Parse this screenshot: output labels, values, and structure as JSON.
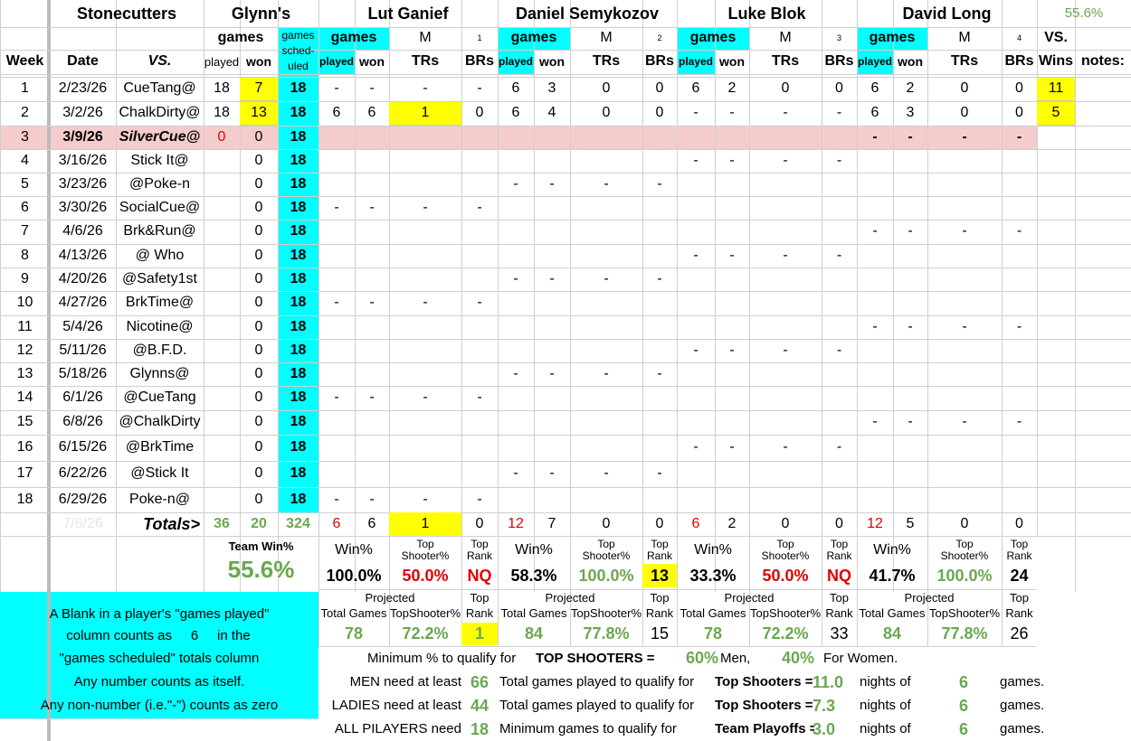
{
  "header": {
    "team": "Stonecutters",
    "venue": "Glynn's",
    "players": [
      "Lut Ganief",
      "Daniel Semykozov",
      "Luke Blok",
      "David Long"
    ],
    "team_pct": "55.6%",
    "games": "games",
    "sched": [
      "games",
      "sched-",
      "uled"
    ],
    "played": "played",
    "won": "won",
    "week": "Week",
    "date": "Date",
    "vs": "VS.",
    "m": "M",
    "trs": "TRs",
    "brs": "BRs",
    "player_nums": [
      1,
      2,
      3,
      4
    ],
    "vs_wins": [
      "VS.",
      "Wins"
    ],
    "notes": "notes:"
  },
  "rows": [
    [
      1,
      "2/23/26",
      "CueTang@",
      18,
      7,
      18,
      "-",
      "-",
      "-",
      "-",
      6,
      3,
      0,
      0,
      6,
      2,
      0,
      0,
      6,
      2,
      0,
      0,
      11
    ],
    [
      2,
      "3/2/26",
      "ChalkDirty@",
      18,
      13,
      18,
      6,
      6,
      1,
      0,
      6,
      4,
      0,
      0,
      "-",
      "-",
      "-",
      "-",
      6,
      3,
      0,
      0,
      5
    ],
    [
      3,
      "3/9/26",
      "SilverCue@",
      0,
      0,
      18,
      null,
      null,
      null,
      null,
      null,
      null,
      null,
      null,
      null,
      null,
      null,
      null,
      "-",
      "-",
      "-",
      "-",
      null
    ],
    [
      4,
      "3/16/26",
      "Stick It@",
      null,
      0,
      18,
      null,
      null,
      null,
      null,
      null,
      null,
      null,
      null,
      "-",
      "-",
      "-",
      "-",
      null,
      null,
      null,
      null,
      null
    ],
    [
      5,
      "3/23/26",
      "@Poke-n",
      null,
      0,
      18,
      null,
      null,
      null,
      null,
      "-",
      "-",
      "-",
      "-",
      null,
      null,
      null,
      null,
      null,
      null,
      null,
      null,
      null
    ],
    [
      6,
      "3/30/26",
      "SocialCue@",
      null,
      0,
      18,
      "-",
      "-",
      "-",
      "-",
      null,
      null,
      null,
      null,
      null,
      null,
      null,
      null,
      null,
      null,
      null,
      null,
      null
    ],
    [
      7,
      "4/6/26",
      "Brk&Run@",
      null,
      0,
      18,
      null,
      null,
      null,
      null,
      null,
      null,
      null,
      null,
      null,
      null,
      null,
      null,
      "-",
      "-",
      "-",
      "-",
      null
    ],
    [
      8,
      "4/13/26",
      "@ Who",
      null,
      0,
      18,
      null,
      null,
      null,
      null,
      null,
      null,
      null,
      null,
      "-",
      "-",
      "-",
      "-",
      null,
      null,
      null,
      null,
      null
    ],
    [
      9,
      "4/20/26",
      "@Safety1st",
      null,
      0,
      18,
      null,
      null,
      null,
      null,
      "-",
      "-",
      "-",
      "-",
      null,
      null,
      null,
      null,
      null,
      null,
      null,
      null,
      null
    ],
    [
      10,
      "4/27/26",
      "BrkTime@",
      null,
      0,
      18,
      "-",
      "-",
      "-",
      "-",
      null,
      null,
      null,
      null,
      null,
      null,
      null,
      null,
      null,
      null,
      null,
      null,
      null
    ],
    [
      11,
      "5/4/26",
      "Nicotine@",
      null,
      0,
      18,
      null,
      null,
      null,
      null,
      null,
      null,
      null,
      null,
      null,
      null,
      null,
      null,
      "-",
      "-",
      "-",
      "-",
      null
    ],
    [
      12,
      "5/11/26",
      "@B.F.D.",
      null,
      0,
      18,
      null,
      null,
      null,
      null,
      null,
      null,
      null,
      null,
      "-",
      "-",
      "-",
      "-",
      null,
      null,
      null,
      null,
      null
    ],
    [
      13,
      "5/18/26",
      "Glynns@",
      null,
      0,
      18,
      null,
      null,
      null,
      null,
      "-",
      "-",
      "-",
      "-",
      null,
      null,
      null,
      null,
      null,
      null,
      null,
      null,
      null
    ],
    [
      14,
      "6/1/26",
      "@CueTang",
      null,
      0,
      18,
      "-",
      "-",
      "-",
      "-",
      null,
      null,
      null,
      null,
      null,
      null,
      null,
      null,
      null,
      null,
      null,
      null,
      null
    ],
    [
      15,
      "6/8/26",
      "@ChalkDirty",
      null,
      0,
      18,
      null,
      null,
      null,
      null,
      null,
      null,
      null,
      null,
      null,
      null,
      null,
      null,
      "-",
      "-",
      "-",
      "-",
      null
    ],
    [
      16,
      "6/15/26",
      "@BrkTime",
      null,
      0,
      18,
      null,
      null,
      null,
      null,
      null,
      null,
      null,
      null,
      "-",
      "-",
      "-",
      "-",
      null,
      null,
      null,
      null,
      null
    ],
    [
      17,
      "6/22/26",
      "@Stick It",
      null,
      0,
      18,
      null,
      null,
      null,
      null,
      "-",
      "-",
      "-",
      "-",
      null,
      null,
      null,
      null,
      null,
      null,
      null,
      null,
      null
    ],
    [
      18,
      "6/29/26",
      "Poke-n@",
      null,
      0,
      18,
      "-",
      "-",
      "-",
      "-",
      null,
      null,
      null,
      null,
      null,
      null,
      null,
      null,
      null,
      null,
      null,
      null,
      null
    ]
  ],
  "totals": [
    null,
    "7/6/26",
    "Totals>",
    36,
    20,
    324,
    6,
    6,
    1,
    0,
    12,
    7,
    0,
    0,
    6,
    2,
    0,
    0,
    12,
    5,
    0,
    0
  ],
  "stats": {
    "team_label": "Team Win%",
    "team_value": "55.6%",
    "win_label": "Win%",
    "ts_label": [
      "Top",
      "Shooter%"
    ],
    "rank_label": [
      "Top",
      "Rank"
    ],
    "projected": "Projected",
    "total_games": "Total Games",
    "proj_ts": "TopShooter%",
    "players": [
      {
        "win": "100.0%",
        "ts": "50.0%",
        "rank": "NQ",
        "proj_total": 78,
        "proj_ts": "72.2%",
        "proj_rank": 1
      },
      {
        "win": "58.3%",
        "ts": "100.0%",
        "rank": 13,
        "proj_total": 84,
        "proj_ts": "77.8%",
        "proj_rank": 15
      },
      {
        "win": "33.3%",
        "ts": "50.0%",
        "rank": "NQ",
        "proj_total": 78,
        "proj_ts": "72.2%",
        "proj_rank": 33
      },
      {
        "win": "41.7%",
        "ts": "100.0%",
        "rank": 24,
        "proj_total": 84,
        "proj_ts": "77.8%",
        "proj_rank": 26
      }
    ]
  },
  "notes": [
    "A Blank in a player's \"games played\"",
    "column counts as",
    "6",
    "in the",
    "\"games scheduled\" totals column",
    "Any number counts as itself.",
    "Any non-number (i.e.\"-\") counts as zero"
  ],
  "minimum": {
    "label": "Minimum % to qualify for",
    "target": "TOP SHOOTERS =",
    "men_pct": "60%",
    "men": "Men,",
    "women_pct": "40%",
    "women": "For Women."
  },
  "rules": [
    {
      "label": "MEN need at least",
      "value": 66,
      "text": "Total games played to qualify for",
      "target": "Top Shooters =",
      "nights": "11.0",
      "nights_label": "nights of",
      "games": 6,
      "games_label": "games."
    },
    {
      "label": "LADIES need at least",
      "value": 44,
      "text": "Total games played to qualify for",
      "target": "Top Shooters =",
      "nights": "7.3",
      "nights_label": "nights of",
      "games": 6,
      "games_label": "games."
    },
    {
      "label": "ALL PILAYERS need",
      "value": 18,
      "text": "Minimum games  to qualify for",
      "target": "Team Playoffs =",
      "nights": "3.0",
      "nights_label": "nights of",
      "games": 6,
      "games_label": "games."
    }
  ]
}
